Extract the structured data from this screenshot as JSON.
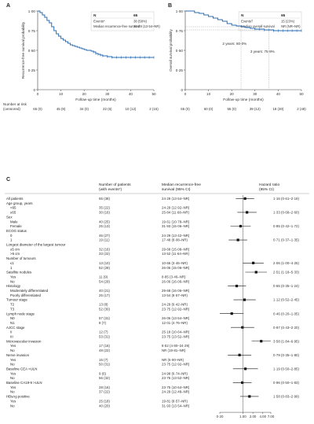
{
  "panels": {
    "a": "A",
    "b": "B",
    "c": "C"
  },
  "numbers_at_risk_label": "Number at risk",
  "censored_label": "(censored)",
  "chart_data": [
    {
      "type": "line",
      "panel": "A",
      "ylabel": "Recurrence-free survival probability",
      "xlabel": "Follow-up time (months)",
      "xlim": [
        0,
        50
      ],
      "ylim": [
        0,
        1.0
      ],
      "xticks": [
        0,
        10,
        20,
        30,
        40,
        50
      ],
      "yticks": [
        0,
        0.25,
        0.5,
        0.75,
        1.0
      ],
      "ytick_labels": [
        "0",
        "0·25",
        "0·50",
        "0·75",
        "1·00"
      ],
      "legend": {
        "header": [
          "N",
          "65"
        ],
        "rows": [
          [
            "Events*",
            "38 (58%)"
          ],
          [
            "Median recurrence-free survival",
            "24·29 (13·54–NR)"
          ]
        ]
      },
      "color": "#2b6cb0",
      "series": [
        {
          "x": [
            0,
            1,
            2,
            3,
            4,
            5,
            6,
            7,
            8,
            9,
            10,
            11,
            12,
            13,
            14,
            15,
            16,
            17,
            18,
            19,
            20,
            21,
            22,
            23,
            24,
            25,
            26,
            27,
            28,
            30,
            32,
            34,
            36,
            38,
            40,
            42,
            44,
            46,
            48,
            50
          ],
          "y": [
            1.0,
            0.98,
            0.95,
            0.92,
            0.88,
            0.85,
            0.8,
            0.75,
            0.71,
            0.68,
            0.65,
            0.63,
            0.61,
            0.59,
            0.57,
            0.56,
            0.55,
            0.54,
            0.53,
            0.52,
            0.51,
            0.5,
            0.5,
            0.49,
            0.48,
            0.46,
            0.45,
            0.44,
            0.43,
            0.42,
            0.41,
            0.41,
            0.41,
            0.41,
            0.41,
            0.41,
            0.41,
            0.41,
            0.41,
            0.41
          ]
        }
      ],
      "at_risk": [
        "65 (0)",
        "45 (9)",
        "34 (0)",
        "22 (6)",
        "10 (12)",
        "2 (15)"
      ]
    },
    {
      "type": "line",
      "panel": "B",
      "ylabel": "Overall survival probability",
      "xlabel": "Follow-up time (months)",
      "xlim": [
        0,
        50
      ],
      "ylim": [
        0,
        1.0
      ],
      "xticks": [
        0,
        10,
        20,
        30,
        40,
        50
      ],
      "yticks": [
        0,
        0.25,
        0.5,
        0.75,
        1.0
      ],
      "ytick_labels": [
        "0",
        "0·25",
        "0·50",
        "0·75",
        "1·00"
      ],
      "legend": {
        "header": [
          "N",
          "65"
        ],
        "rows": [
          [
            "Events†",
            "15 (23%)"
          ],
          [
            "Median overall survival",
            "NR (NR–NR)"
          ]
        ]
      },
      "color": "#2b6cb0",
      "series": [
        {
          "x": [
            0,
            2,
            4,
            6,
            8,
            10,
            12,
            14,
            16,
            18,
            20,
            22,
            24,
            26,
            28,
            30,
            32,
            34,
            36,
            38,
            40,
            42,
            44,
            46,
            48,
            50
          ],
          "y": [
            1.0,
            1.0,
            0.98,
            0.97,
            0.95,
            0.93,
            0.91,
            0.89,
            0.87,
            0.84,
            0.82,
            0.81,
            0.8,
            0.79,
            0.78,
            0.77,
            0.77,
            0.76,
            0.76,
            0.75,
            0.75,
            0.75,
            0.75,
            0.75,
            0.75,
            0.75
          ]
        }
      ],
      "annotations": [
        "2 years: 80·0%",
        "3 years: 75·9%"
      ],
      "at_risk": [
        "65 (0)",
        "60 (0)",
        "55 (0)",
        "39 (12)",
        "18 (30)",
        "2 (48)"
      ]
    },
    {
      "type": "forest",
      "panel": "C",
      "col_headers": [
        "Number of patients (with events*)",
        "Median recurrence-free survival (95% CI)",
        "Hazard ratio (95% CI)"
      ],
      "xaxis_ticks": [
        "0·20",
        "1.00",
        "2.00",
        "4.00",
        "7.00"
      ],
      "rows": [
        {
          "label": "All patients",
          "n": "65 (38)",
          "med": "24·29 (13·54–NR)",
          "hr": "1·16 (0·61–2·19)",
          "est": 1.16,
          "lo": 0.61,
          "hi": 2.19,
          "header": false,
          "sub": false
        },
        {
          "label": "Age group, years",
          "n": "",
          "med": "",
          "hr": "",
          "header": true,
          "sub": false
        },
        {
          "label": "<65",
          "n": "35 (22)",
          "med": "24·29 (12·92–NR)",
          "hr": "",
          "header": false,
          "sub": true
        },
        {
          "label": "≥65",
          "n": "30 (16)",
          "med": "25·84 (11·68–NR)",
          "hr": "1·33 (0·68–2·60)",
          "est": 1.33,
          "lo": 0.68,
          "hi": 2.6,
          "header": false,
          "sub": true
        },
        {
          "label": "Sex",
          "n": "",
          "med": "",
          "hr": "",
          "header": true,
          "sub": false
        },
        {
          "label": "Male",
          "n": "40 (25)",
          "med": "19·61 (10·78–NR)",
          "hr": "",
          "header": false,
          "sub": true
        },
        {
          "label": "Female",
          "n": "25 (13)",
          "med": "31·93 (15·06–NR)",
          "hr": "0·85 (0·42–1·72)",
          "est": 0.85,
          "lo": 0.42,
          "hi": 1.72,
          "header": false,
          "sub": true
        },
        {
          "label": "ECOG status",
          "n": "",
          "med": "",
          "hr": "",
          "header": true,
          "sub": false
        },
        {
          "label": "0",
          "n": "46 (27)",
          "med": "24·29 (13·42–NR)",
          "hr": "",
          "header": false,
          "sub": true
        },
        {
          "label": "1",
          "n": "19 (11)",
          "med": "17·48 (8·08–NR)",
          "hr": "0·71 (0·37–1·35)",
          "est": 0.71,
          "lo": 0.37,
          "hi": 1.35,
          "header": false,
          "sub": true
        },
        {
          "label": "Longest diameter of the largest tumour",
          "n": "",
          "med": "",
          "hr": "",
          "header": true,
          "sub": false
        },
        {
          "label": "≤5 cm",
          "n": "32 (16)",
          "med": "29·68 (15·08–NR)",
          "hr": "",
          "header": false,
          "sub": true
        },
        {
          "label": ">5 cm",
          "n": "33 (22)",
          "med": "13·52 (11·64–NR)",
          "hr": "",
          "header": false,
          "sub": true
        },
        {
          "label": "Number of tumours",
          "n": "",
          "med": "",
          "hr": "",
          "header": true,
          "sub": false
        },
        {
          "label": "≤1",
          "n": "13 (10)",
          "med": "10·66 (3·46–NR)",
          "hr": "2·06 (1·00–4·25)",
          "est": 2.06,
          "lo": 1.0,
          "hi": 4.25,
          "header": false,
          "sub": true
        },
        {
          "label": "1",
          "n": "52 (28)",
          "med": "26·06 (15·06–NR)",
          "hr": "",
          "header": false,
          "sub": true
        },
        {
          "label": "Satellite nodules",
          "n": "",
          "med": "",
          "hr": "2·51 (1·18–5·33)",
          "est": 2.51,
          "lo": 1.18,
          "hi": 5.33,
          "header": true,
          "sub": false
        },
        {
          "label": "Yes",
          "n": "11 (9)",
          "med": "8·85 (3·46–NR)",
          "hr": "",
          "header": false,
          "sub": true
        },
        {
          "label": "No",
          "n": "54 (29)",
          "med": "26·06 (16·06–NR)",
          "hr": "",
          "header": false,
          "sub": true
        },
        {
          "label": "Histology",
          "n": "",
          "med": "",
          "hr": "0·65 (0·35–1·24)",
          "est": 0.65,
          "lo": 0.35,
          "hi": 1.24,
          "header": true,
          "sub": false
        },
        {
          "label": "Moderately differentiated",
          "n": "40 (21)",
          "med": "29·68 (16·06–NR)",
          "hr": "",
          "header": false,
          "sub": true
        },
        {
          "label": "Poorly differentiated",
          "n": "25 (17)",
          "med": "13·54 (8·57–NR)",
          "hr": "",
          "header": false,
          "sub": true
        },
        {
          "label": "Tumour stage",
          "n": "",
          "med": "",
          "hr": "1·12 (0·52–2·45)",
          "est": 1.12,
          "lo": 0.52,
          "hi": 2.45,
          "header": true,
          "sub": false
        },
        {
          "label": "T2",
          "n": "13 (8)",
          "med": "24·29 (6·42–NR)",
          "hr": "",
          "header": false,
          "sub": true
        },
        {
          "label": "T3",
          "n": "52 (30)",
          "med": "23·75 (12·92–NR)",
          "hr": "",
          "header": false,
          "sub": true
        },
        {
          "label": "Lymph node stage",
          "n": "",
          "med": "",
          "hr": "0·46 (0·20–1·05)",
          "est": 0.46,
          "lo": 0.2,
          "hi": 1.05,
          "header": true,
          "sub": false
        },
        {
          "label": "N0",
          "n": "57 (31)",
          "med": "26·06 (13·54–NR)",
          "hr": "",
          "header": false,
          "sub": true
        },
        {
          "label": "N1",
          "n": "8 (7)",
          "med": "12·01 (4·76–NR)",
          "hr": "",
          "header": false,
          "sub": true
        },
        {
          "label": "AJCC stage",
          "n": "",
          "med": "",
          "hr": "0·97 (0·43–2·20)",
          "est": 0.97,
          "lo": 0.43,
          "hi": 2.2,
          "header": true,
          "sub": false
        },
        {
          "label": "II",
          "n": "12 (7)",
          "med": "25·18 (10·64–NR)",
          "hr": "",
          "header": false,
          "sub": true
        },
        {
          "label": "III",
          "n": "53 (31)",
          "med": "23·75 (13·52–NR)",
          "hr": "",
          "header": false,
          "sub": true
        },
        {
          "label": "Microvascular invasion",
          "n": "",
          "med": "",
          "hr": "3·58 (1·84–6·95)",
          "est": 3.58,
          "lo": 1.84,
          "hi": 6.95,
          "header": true,
          "sub": false
        },
        {
          "label": "Yes",
          "n": "17 (16)",
          "med": "8·52 (4·80–24·29)",
          "hr": "",
          "header": false,
          "sub": true
        },
        {
          "label": "No",
          "n": "48 (22)",
          "med": "NR (19·81–NR)",
          "hr": "",
          "header": false,
          "sub": true
        },
        {
          "label": "Nerve invasion",
          "n": "",
          "med": "",
          "hr": "0·79 (0·35–1·80)",
          "est": 0.79,
          "lo": 0.35,
          "hi": 1.8,
          "header": true,
          "sub": false
        },
        {
          "label": "Yes",
          "n": "15 (7)",
          "med": "NR (5·00–NR)",
          "hr": "",
          "header": false,
          "sub": true
        },
        {
          "label": "No",
          "n": "50 (31)",
          "med": "23·75 (12·92–NR)",
          "hr": "",
          "header": false,
          "sub": true
        },
        {
          "label": "Baseline CEA >ULN",
          "n": "",
          "med": "",
          "hr": "1·19 (0·50–2·85)",
          "est": 1.19,
          "lo": 0.5,
          "hi": 2.85,
          "header": true,
          "sub": false
        },
        {
          "label": "Yes",
          "n": "9 (6)",
          "med": "24·98 (6·74–NR)",
          "hr": "",
          "header": false,
          "sub": true
        },
        {
          "label": "No",
          "n": "56 (32)",
          "med": "23·75 (13·52–NR)",
          "hr": "",
          "header": false,
          "sub": true
        },
        {
          "label": "Baseline CA19-9 >ULN",
          "n": "",
          "med": "",
          "hr": "0·96 (0·50–1·83)",
          "est": 0.96,
          "lo": 0.5,
          "hi": 1.83,
          "header": true,
          "sub": false
        },
        {
          "label": "Yes",
          "n": "28 (16)",
          "med": "23·75 (10·64–NR)",
          "hr": "",
          "header": false,
          "sub": true
        },
        {
          "label": "No",
          "n": "37 (22)",
          "med": "24·29 (12·48–NR)",
          "hr": "",
          "header": false,
          "sub": true
        },
        {
          "label": "HBsAg positive",
          "n": "",
          "med": "",
          "hr": "1·58 (0·83–2·99)",
          "est": 1.58,
          "lo": 0.83,
          "hi": 2.99,
          "header": true,
          "sub": false
        },
        {
          "label": "Yes",
          "n": "25 (18)",
          "med": "19·81 (8·57–NR)",
          "hr": "",
          "header": false,
          "sub": true
        },
        {
          "label": "No",
          "n": "40 (20)",
          "med": "31·93 (13·54–NR)",
          "hr": "",
          "header": false,
          "sub": true
        }
      ]
    }
  ]
}
